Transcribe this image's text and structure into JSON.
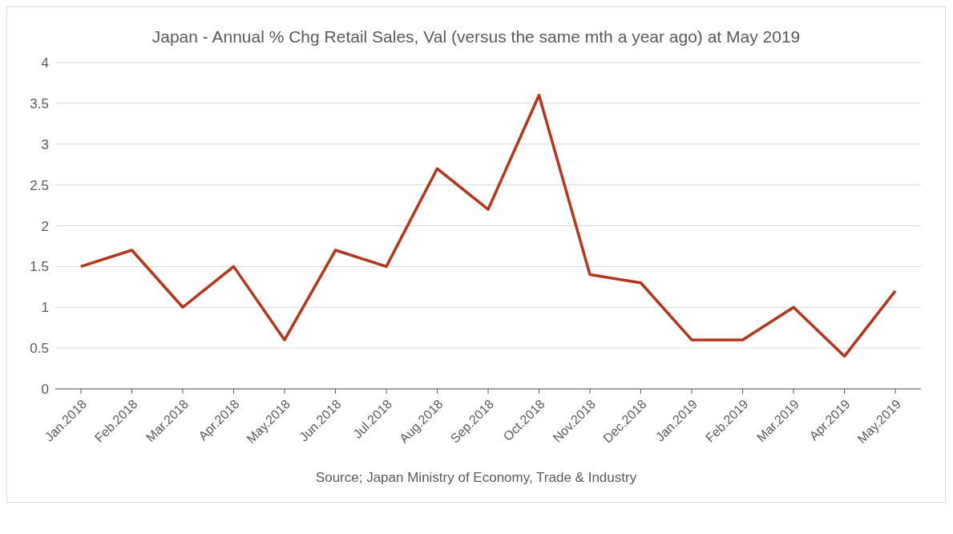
{
  "chart_data": {
    "type": "line",
    "title": "Japan - Annual % Chg Retail Sales, Val (versus the same mth a year ago) at May 2019",
    "categories": [
      "Jan.2018",
      "Feb.2018",
      "Mar.2018",
      "Apr.2018",
      "May.2018",
      "Jun.2018",
      "Jul.2018",
      "Aug.2018",
      "Sep.2018",
      "Oct.2018",
      "Nov.2018",
      "Dec.2018",
      "Jan.2019",
      "Feb.2019",
      "Mar.2019",
      "Apr.2019",
      "May.2019"
    ],
    "series": [
      {
        "color": "#b5351b",
        "values": [
          1.5,
          1.7,
          1.0,
          1.5,
          0.6,
          1.7,
          1.5,
          2.7,
          2.2,
          3.6,
          1.4,
          1.3,
          0.6,
          0.6,
          1.0,
          0.4,
          1.2
        ]
      }
    ],
    "ylim": [
      0,
      4
    ],
    "yticks": [
      0,
      0.5,
      1,
      1.5,
      2,
      2.5,
      3,
      3.5,
      4
    ],
    "grid": "y",
    "marker": "none",
    "line_style": "solid",
    "annotations": [
      "Source; Japan Ministry of Economy, Trade & Industry"
    ]
  }
}
